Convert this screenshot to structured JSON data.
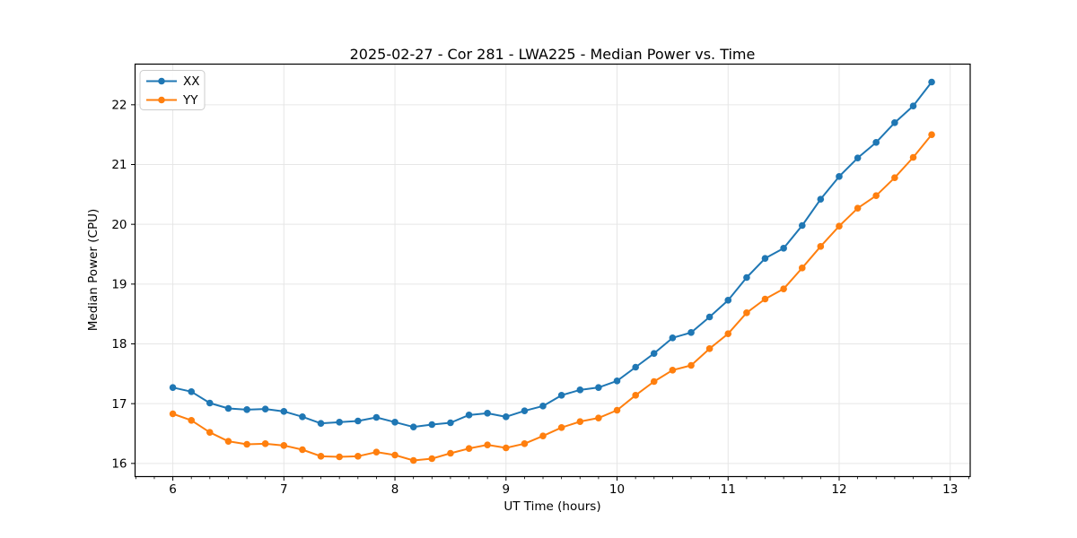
{
  "chart_data": {
    "type": "line",
    "title": "2025-02-27 - Cor 281 - LWA225 - Median Power vs. Time",
    "xlabel": "UT Time (hours)",
    "ylabel": "Median Power (CPU)",
    "grid": true,
    "legend_position": "upper left",
    "xlim": [
      5.66,
      13.18
    ],
    "ylim": [
      15.78,
      22.68
    ],
    "xticks": [
      6,
      7,
      8,
      9,
      10,
      11,
      12,
      13
    ],
    "yticks": [
      16,
      17,
      18,
      19,
      20,
      21,
      22
    ],
    "x_minor_step_hours": 0.16667,
    "x": [
      6.0,
      6.167,
      6.333,
      6.5,
      6.667,
      6.833,
      7.0,
      7.167,
      7.333,
      7.5,
      7.667,
      7.833,
      8.0,
      8.167,
      8.333,
      8.5,
      8.667,
      8.833,
      9.0,
      9.167,
      9.333,
      9.5,
      9.667,
      9.833,
      10.0,
      10.167,
      10.333,
      10.5,
      10.667,
      10.833,
      11.0,
      11.167,
      11.333,
      11.5,
      11.667,
      11.833,
      12.0,
      12.167,
      12.333,
      12.5,
      12.667,
      12.833
    ],
    "series": [
      {
        "name": "XX",
        "color": "#1f77b4",
        "values": [
          17.27,
          17.2,
          17.01,
          16.92,
          16.9,
          16.91,
          16.87,
          16.78,
          16.67,
          16.69,
          16.71,
          16.77,
          16.69,
          16.61,
          16.65,
          16.68,
          16.81,
          16.84,
          16.78,
          16.88,
          16.96,
          17.14,
          17.23,
          17.27,
          17.38,
          17.61,
          17.84,
          18.1,
          18.19,
          18.45,
          18.73,
          19.11,
          19.43,
          19.6,
          19.98,
          20.42,
          20.8,
          21.11,
          21.37,
          21.7,
          21.98,
          22.38
        ]
      },
      {
        "name": "YY",
        "color": "#ff7f0e",
        "values": [
          16.83,
          16.72,
          16.52,
          16.37,
          16.32,
          16.33,
          16.3,
          16.23,
          16.12,
          16.11,
          16.12,
          16.19,
          16.14,
          16.05,
          16.08,
          16.17,
          16.25,
          16.31,
          16.26,
          16.33,
          16.46,
          16.6,
          16.7,
          16.76,
          16.89,
          17.14,
          17.37,
          17.56,
          17.64,
          17.92,
          18.17,
          18.52,
          18.75,
          18.92,
          19.27,
          19.63,
          19.97,
          20.27,
          20.48,
          20.78,
          21.12,
          21.5
        ]
      }
    ],
    "style": {
      "grid_color": "#e6e6e6",
      "spine_color": "#000000",
      "legend_border": "#cccccc",
      "marker_radius": 3.8,
      "line_width": 2
    }
  }
}
